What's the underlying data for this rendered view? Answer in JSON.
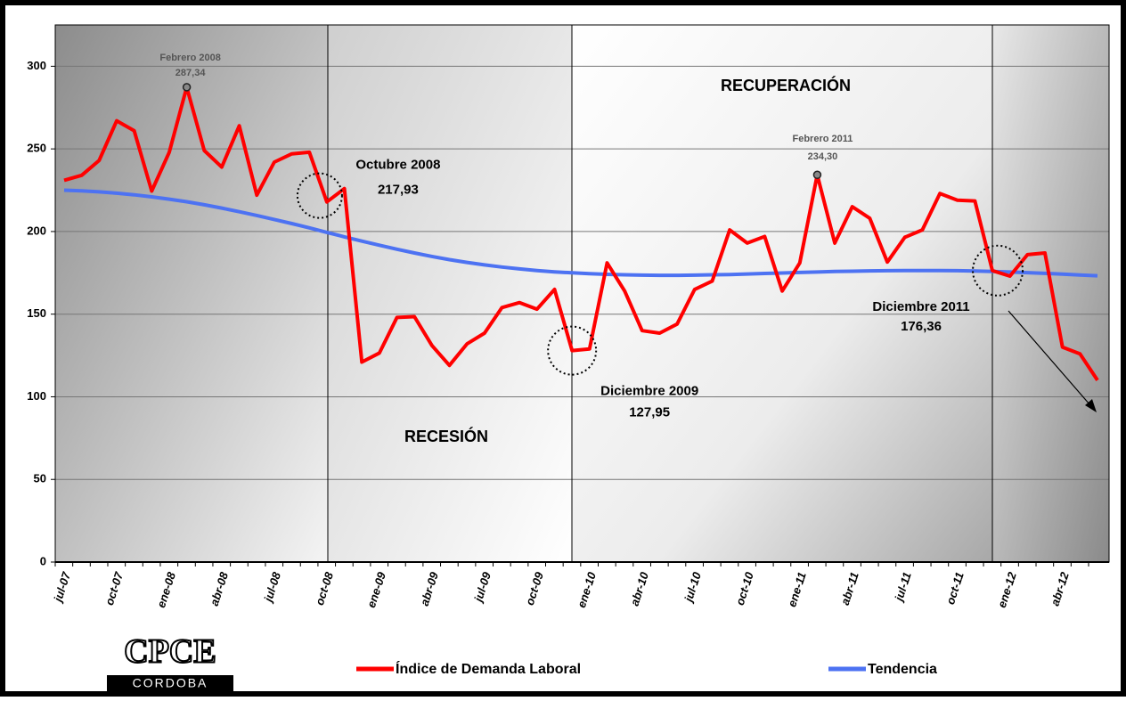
{
  "chart_data": {
    "type": "line",
    "categories": [
      "jul-07",
      null,
      null,
      "oct-07",
      null,
      null,
      "ene-08",
      null,
      null,
      "abr-08",
      null,
      null,
      "jul-08",
      null,
      null,
      "oct-08",
      null,
      null,
      "ene-09",
      null,
      null,
      "abr-09",
      null,
      null,
      "jul-09",
      null,
      null,
      "oct-09",
      null,
      null,
      "ene-10",
      null,
      null,
      "abr-10",
      null,
      null,
      "jul-10",
      null,
      null,
      "oct-10",
      null,
      null,
      "ene-11",
      null,
      null,
      "abr-11",
      null,
      null,
      "jul-11",
      null,
      null,
      "oct-11",
      null,
      null,
      "ene-12",
      null,
      null,
      "abr-12",
      null,
      null
    ],
    "series": [
      {
        "name": "Índice de Demanda Laboral",
        "color": "#ff0000",
        "values": [
          231,
          234,
          243,
          267,
          261,
          224.5,
          248,
          287.34,
          249,
          239,
          264,
          222,
          242,
          247,
          248,
          217.93,
          226,
          121,
          126.5,
          148,
          148.5,
          131,
          119,
          132,
          138.5,
          154,
          157,
          153,
          165,
          127.95,
          129,
          181,
          164,
          140,
          138.5,
          144,
          165,
          170,
          201,
          193,
          197,
          164,
          181,
          234.3,
          193,
          215,
          208,
          181.5,
          196.5,
          201,
          223,
          219,
          218.5,
          176.36,
          173,
          186,
          187,
          130,
          126,
          110
        ],
        "value_labels": [
          null,
          null,
          null,
          null,
          null,
          null,
          null,
          "287,34",
          null,
          null,
          null,
          null,
          null,
          null,
          null,
          "217,93",
          null,
          null,
          null,
          null,
          null,
          null,
          null,
          null,
          null,
          null,
          null,
          null,
          null,
          "127,95",
          null,
          null,
          null,
          null,
          null,
          null,
          null,
          null,
          null,
          null,
          null,
          null,
          null,
          "234,30",
          null,
          null,
          null,
          null,
          null,
          null,
          null,
          null,
          null,
          "176,36",
          null,
          null,
          null,
          null,
          null,
          null
        ],
        "notes": [
          null,
          null,
          null,
          null,
          null,
          null,
          null,
          "Febrero 2008",
          null,
          null,
          null,
          null,
          null,
          null,
          null,
          "Octubre 2008",
          null,
          null,
          null,
          null,
          null,
          null,
          null,
          null,
          null,
          null,
          null,
          null,
          null,
          "Diciembre 2009",
          null,
          null,
          null,
          null,
          null,
          null,
          null,
          null,
          null,
          null,
          null,
          null,
          null,
          "Febrero 2011",
          null,
          null,
          null,
          null,
          null,
          null,
          null,
          null,
          null,
          "Diciembre 2011",
          null,
          null,
          null,
          null,
          null,
          null
        ]
      },
      {
        "name": "Tendencia",
        "color": "#4d72f2",
        "values": [
          225,
          224.6,
          224,
          223.2,
          222.2,
          221,
          219.6,
          218,
          216.2,
          214.2,
          212,
          209.7,
          207.3,
          204.8,
          202.2,
          199.5,
          196.8,
          194.2,
          191.7,
          189.3,
          187,
          184.9,
          183,
          181.3,
          179.8,
          178.5,
          177.4,
          176.4,
          175.6,
          175,
          174.5,
          174.1,
          173.8,
          173.6,
          173.5,
          173.5,
          173.6,
          173.8,
          174,
          174.3,
          174.6,
          174.9,
          175.2,
          175.5,
          175.8,
          176,
          176.2,
          176.3,
          176.4,
          176.4,
          176.4,
          176.3,
          176.1,
          175.8,
          175.5,
          175.1,
          174.7,
          174.2,
          173.7,
          173.2
        ]
      }
    ],
    "region_labels": [
      "RECESIÓN",
      "RECUPERACIÓN"
    ],
    "ylim": [
      0,
      325
    ],
    "yticks": [
      0,
      50,
      100,
      150,
      200,
      250,
      300
    ],
    "grid": true,
    "legend": "bottom",
    "logo": {
      "title": "CPCE",
      "subtitle": "CORDOBA"
    }
  }
}
